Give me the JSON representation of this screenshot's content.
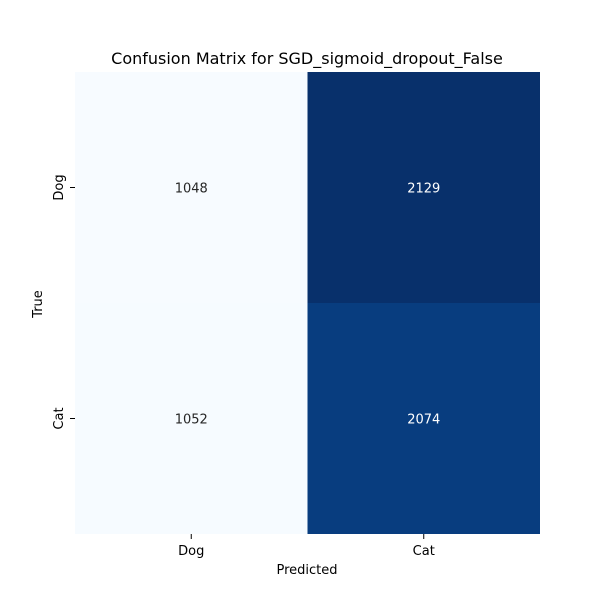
{
  "chart_data": {
    "type": "heatmap",
    "title": "Confusion Matrix for SGD_sigmoid_dropout_False",
    "xlabel": "Predicted",
    "ylabel": "True",
    "x_categories": [
      "Dog",
      "Cat"
    ],
    "y_categories": [
      "Dog",
      "Cat"
    ],
    "values": [
      [
        1048,
        2129
      ],
      [
        1052,
        2074
      ]
    ],
    "colormap": "Blues",
    "value_range": [
      1048,
      2129
    ],
    "colors": {
      "low": "#f7fbff",
      "high": "#08306b",
      "dark_text": "#262626",
      "light_text": "#ffffff"
    }
  }
}
